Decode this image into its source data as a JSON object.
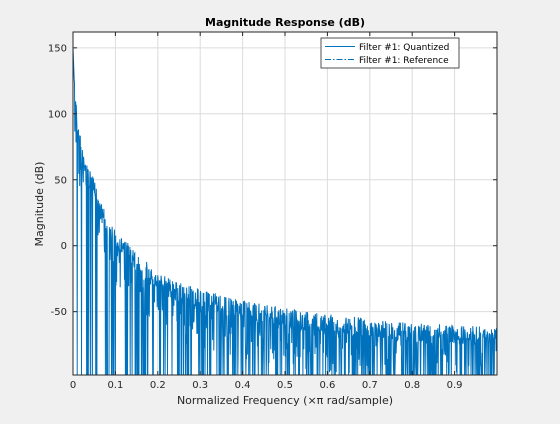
{
  "chart_data": {
    "type": "line",
    "title": "Magnitude Response (dB)",
    "xlabel": "Normalized Frequency (×π rad/sample)",
    "ylabel": "Magnitude (dB)",
    "xlim": [
      0,
      1
    ],
    "ylim": [
      -98,
      162
    ],
    "grid": true,
    "legend_position": "top-right",
    "x_ticks": [
      0,
      0.1,
      0.2,
      0.3,
      0.4,
      0.5,
      0.6,
      0.7,
      0.8,
      0.9
    ],
    "x_tick_labels": [
      "0",
      "0.1",
      "0.2",
      "0.3",
      "0.4",
      "0.5",
      "0.6",
      "0.7",
      "0.8",
      "0.9"
    ],
    "y_ticks": [
      -50,
      0,
      50,
      100,
      150
    ],
    "y_tick_labels": [
      "-50",
      "0",
      "50",
      "100",
      "150"
    ],
    "series": [
      {
        "name": "Filter #1: Quantized",
        "style": "solid",
        "color": "#0072bd",
        "envelope": {
          "x": [
            0,
            0.003,
            0.01,
            0.02,
            0.03,
            0.05,
            0.07,
            0.1,
            0.13,
            0.16,
            0.2,
            0.25,
            0.3,
            0.35,
            0.4,
            0.5,
            0.6,
            0.7,
            0.8,
            0.9,
            1.0
          ],
          "y": [
            150,
            125,
            100,
            78,
            64,
            50,
            30,
            12,
            2,
            -8,
            -20,
            -28,
            -33,
            -38,
            -41,
            -47,
            -52,
            -55,
            -58,
            -60,
            -62
          ]
        },
        "floor": -98
      },
      {
        "name": "Filter #1: Reference",
        "style": "dashdot",
        "color": "#0072bd"
      }
    ]
  }
}
